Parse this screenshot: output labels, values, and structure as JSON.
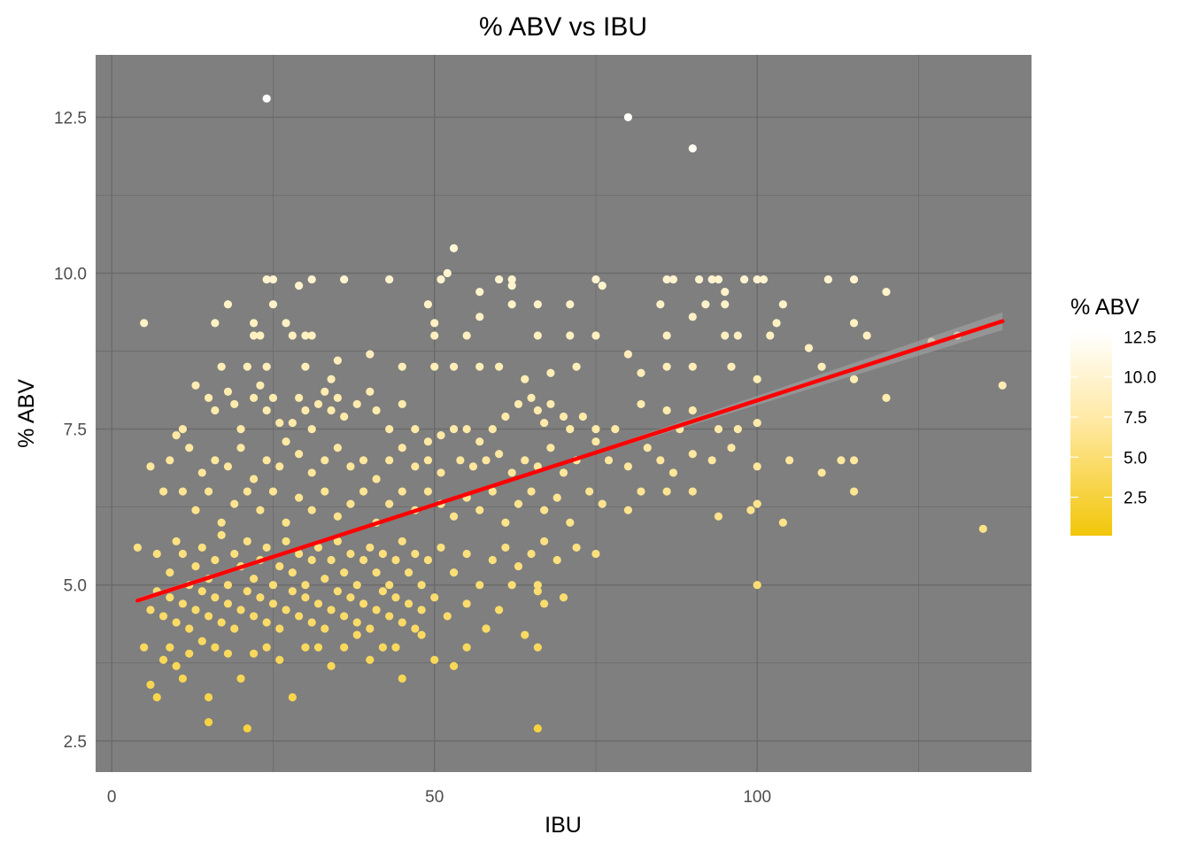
{
  "chart_data": {
    "type": "scatter",
    "title": "% ABV vs IBU",
    "xlabel": "IBU",
    "ylabel": "% ABV",
    "xlim": [
      -2.5,
      142.5
    ],
    "ylim": [
      2.0,
      13.5
    ],
    "x_ticks": [
      0,
      50,
      100
    ],
    "y_ticks": [
      2.5,
      5.0,
      7.5,
      10.0,
      12.5
    ],
    "x_tick_labels": [
      "0",
      "50",
      "100"
    ],
    "y_tick_labels": [
      "2.5",
      "5.0",
      "7.5",
      "10.0",
      "12.5"
    ],
    "grid": true,
    "panel_background": "#7f7f7f",
    "grid_color": "#6a6a6a",
    "color_scale": {
      "title": "% ABV",
      "low_color": "#f2c609",
      "mid_color": "#ffe8a0",
      "high_color": "#ffffff",
      "limits": [
        0.1,
        12.8
      ],
      "breaks": [
        2.5,
        5.0,
        7.5,
        10.0,
        12.5
      ],
      "break_labels": [
        "2.5",
        "5.0",
        "7.5",
        "10.0",
        "12.5"
      ],
      "legend_position": "right"
    },
    "trend_line": {
      "color": "#ff0000",
      "ribbon_color": "#a8a8a8",
      "x": [
        4,
        138
      ],
      "y": [
        4.75,
        9.23
      ]
    },
    "points": [
      [
        24,
        12.8
      ],
      [
        80,
        12.5
      ],
      [
        90,
        12.0
      ],
      [
        53,
        10.4
      ],
      [
        52,
        10.0
      ],
      [
        51,
        9.9
      ],
      [
        24,
        9.9
      ],
      [
        25,
        9.9
      ],
      [
        31,
        9.9
      ],
      [
        36,
        9.9
      ],
      [
        43,
        9.9
      ],
      [
        60,
        9.9
      ],
      [
        62,
        9.9
      ],
      [
        75,
        9.9
      ],
      [
        86,
        9.9
      ],
      [
        87,
        9.9
      ],
      [
        91,
        9.9
      ],
      [
        93,
        9.9
      ],
      [
        94,
        9.9
      ],
      [
        98,
        9.9
      ],
      [
        100,
        9.9
      ],
      [
        101,
        9.9
      ],
      [
        111,
        9.9
      ],
      [
        115,
        9.9
      ],
      [
        29,
        9.8
      ],
      [
        62,
        9.8
      ],
      [
        76,
        9.8
      ],
      [
        95,
        9.7
      ],
      [
        57,
        9.7
      ],
      [
        120,
        9.7
      ],
      [
        5,
        9.2
      ],
      [
        16,
        9.2
      ],
      [
        18,
        9.5
      ],
      [
        22,
        9.2
      ],
      [
        25,
        9.5
      ],
      [
        27,
        9.2
      ],
      [
        49,
        9.5
      ],
      [
        50,
        9.2
      ],
      [
        57,
        9.3
      ],
      [
        62,
        9.5
      ],
      [
        66,
        9.5
      ],
      [
        71,
        9.5
      ],
      [
        85,
        9.5
      ],
      [
        90,
        9.3
      ],
      [
        92,
        9.5
      ],
      [
        95,
        9.5
      ],
      [
        104,
        9.5
      ],
      [
        103,
        9.2
      ],
      [
        115,
        9.2
      ],
      [
        117,
        9.0
      ],
      [
        127,
        8.9
      ],
      [
        131,
        9.0
      ],
      [
        22,
        9.0
      ],
      [
        23,
        9.0
      ],
      [
        28,
        9.0
      ],
      [
        30,
        9.0
      ],
      [
        31,
        9.0
      ],
      [
        50,
        9.0
      ],
      [
        55,
        9.0
      ],
      [
        66,
        9.0
      ],
      [
        71,
        9.0
      ],
      [
        75,
        9.0
      ],
      [
        86,
        9.0
      ],
      [
        95,
        9.0
      ],
      [
        97,
        9.0
      ],
      [
        102,
        9.0
      ],
      [
        17,
        8.5
      ],
      [
        21,
        8.5
      ],
      [
        24,
        8.5
      ],
      [
        30,
        8.5
      ],
      [
        34,
        8.3
      ],
      [
        35,
        8.6
      ],
      [
        40,
        8.7
      ],
      [
        45,
        8.5
      ],
      [
        50,
        8.5
      ],
      [
        53,
        8.5
      ],
      [
        57,
        8.5
      ],
      [
        60,
        8.5
      ],
      [
        64,
        8.3
      ],
      [
        68,
        8.4
      ],
      [
        72,
        8.5
      ],
      [
        80,
        8.7
      ],
      [
        82,
        8.4
      ],
      [
        86,
        8.5
      ],
      [
        90,
        8.5
      ],
      [
        96,
        8.5
      ],
      [
        100,
        8.3
      ],
      [
        108,
        8.8
      ],
      [
        110,
        8.5
      ],
      [
        115,
        8.3
      ],
      [
        120,
        8.0
      ],
      [
        138,
        8.2
      ],
      [
        10,
        7.4
      ],
      [
        11,
        7.5
      ],
      [
        13,
        8.2
      ],
      [
        15,
        8.0
      ],
      [
        16,
        7.8
      ],
      [
        18,
        8.1
      ],
      [
        19,
        7.9
      ],
      [
        20,
        7.5
      ],
      [
        22,
        8.0
      ],
      [
        23,
        8.2
      ],
      [
        24,
        7.8
      ],
      [
        25,
        8.0
      ],
      [
        26,
        7.6
      ],
      [
        28,
        7.6
      ],
      [
        29,
        8.0
      ],
      [
        30,
        7.8
      ],
      [
        31,
        7.5
      ],
      [
        32,
        7.9
      ],
      [
        33,
        8.1
      ],
      [
        34,
        7.8
      ],
      [
        35,
        8.0
      ],
      [
        36,
        7.7
      ],
      [
        38,
        7.9
      ],
      [
        40,
        8.1
      ],
      [
        41,
        7.8
      ],
      [
        43,
        7.5
      ],
      [
        45,
        7.9
      ],
      [
        47,
        7.5
      ],
      [
        49,
        7.3
      ],
      [
        51,
        7.4
      ],
      [
        53,
        7.5
      ],
      [
        55,
        7.5
      ],
      [
        57,
        7.3
      ],
      [
        59,
        7.5
      ],
      [
        61,
        7.7
      ],
      [
        63,
        7.9
      ],
      [
        65,
        8.0
      ],
      [
        66,
        7.8
      ],
      [
        67,
        7.6
      ],
      [
        68,
        7.9
      ],
      [
        70,
        7.7
      ],
      [
        71,
        7.5
      ],
      [
        73,
        7.7
      ],
      [
        75,
        7.5
      ],
      [
        78,
        7.5
      ],
      [
        82,
        7.9
      ],
      [
        86,
        7.8
      ],
      [
        88,
        7.5
      ],
      [
        90,
        7.8
      ],
      [
        94,
        7.5
      ],
      [
        97,
        7.5
      ],
      [
        100,
        7.6
      ],
      [
        6,
        6.9
      ],
      [
        9,
        7.0
      ],
      [
        12,
        7.2
      ],
      [
        14,
        6.8
      ],
      [
        16,
        7.0
      ],
      [
        18,
        6.9
      ],
      [
        20,
        7.2
      ],
      [
        22,
        6.7
      ],
      [
        24,
        7.0
      ],
      [
        26,
        6.9
      ],
      [
        27,
        7.3
      ],
      [
        29,
        7.1
      ],
      [
        31,
        6.8
      ],
      [
        33,
        7.0
      ],
      [
        35,
        7.2
      ],
      [
        37,
        6.9
      ],
      [
        39,
        7.0
      ],
      [
        41,
        6.7
      ],
      [
        43,
        7.0
      ],
      [
        45,
        7.2
      ],
      [
        47,
        6.9
      ],
      [
        49,
        7.0
      ],
      [
        51,
        6.8
      ],
      [
        54,
        7.0
      ],
      [
        56,
        6.9
      ],
      [
        58,
        7.0
      ],
      [
        60,
        7.1
      ],
      [
        62,
        6.8
      ],
      [
        64,
        7.0
      ],
      [
        66,
        6.9
      ],
      [
        68,
        7.2
      ],
      [
        70,
        6.8
      ],
      [
        72,
        7.0
      ],
      [
        75,
        7.3
      ],
      [
        77,
        7.0
      ],
      [
        80,
        6.9
      ],
      [
        83,
        7.2
      ],
      [
        85,
        7.0
      ],
      [
        87,
        6.8
      ],
      [
        90,
        7.1
      ],
      [
        93,
        7.0
      ],
      [
        96,
        7.2
      ],
      [
        100,
        6.9
      ],
      [
        105,
        7.0
      ],
      [
        110,
        6.8
      ],
      [
        113,
        7.0
      ],
      [
        115,
        7.0
      ],
      [
        8,
        6.5
      ],
      [
        11,
        6.5
      ],
      [
        13,
        6.2
      ],
      [
        15,
        6.5
      ],
      [
        17,
        6.0
      ],
      [
        19,
        6.3
      ],
      [
        21,
        6.5
      ],
      [
        23,
        6.2
      ],
      [
        25,
        6.5
      ],
      [
        27,
        6.0
      ],
      [
        29,
        6.4
      ],
      [
        31,
        6.2
      ],
      [
        33,
        6.5
      ],
      [
        35,
        6.1
      ],
      [
        37,
        6.3
      ],
      [
        39,
        6.5
      ],
      [
        41,
        6.0
      ],
      [
        43,
        6.3
      ],
      [
        45,
        6.5
      ],
      [
        47,
        6.2
      ],
      [
        49,
        6.5
      ],
      [
        51,
        6.3
      ],
      [
        53,
        6.1
      ],
      [
        55,
        6.4
      ],
      [
        57,
        6.2
      ],
      [
        59,
        6.5
      ],
      [
        61,
        6.0
      ],
      [
        63,
        6.3
      ],
      [
        65,
        6.5
      ],
      [
        67,
        6.2
      ],
      [
        69,
        6.4
      ],
      [
        71,
        6.0
      ],
      [
        74,
        6.5
      ],
      [
        76,
        6.3
      ],
      [
        80,
        6.2
      ],
      [
        82,
        6.5
      ],
      [
        86,
        6.5
      ],
      [
        90,
        6.5
      ],
      [
        94,
        6.1
      ],
      [
        99,
        6.2
      ],
      [
        100,
        6.3
      ],
      [
        104,
        6.0
      ],
      [
        115,
        6.5
      ],
      [
        4,
        5.6
      ],
      [
        7,
        5.5
      ],
      [
        9,
        5.2
      ],
      [
        10,
        5.7
      ],
      [
        11,
        5.5
      ],
      [
        12,
        5.0
      ],
      [
        13,
        5.3
      ],
      [
        14,
        5.6
      ],
      [
        15,
        5.1
      ],
      [
        16,
        5.4
      ],
      [
        17,
        5.8
      ],
      [
        18,
        5.0
      ],
      [
        19,
        5.5
      ],
      [
        20,
        5.3
      ],
      [
        21,
        5.7
      ],
      [
        22,
        5.1
      ],
      [
        23,
        5.4
      ],
      [
        24,
        5.6
      ],
      [
        25,
        5.0
      ],
      [
        26,
        5.3
      ],
      [
        27,
        5.7
      ],
      [
        28,
        5.2
      ],
      [
        29,
        5.5
      ],
      [
        30,
        5.0
      ],
      [
        31,
        5.4
      ],
      [
        32,
        5.6
      ],
      [
        33,
        5.1
      ],
      [
        34,
        5.4
      ],
      [
        35,
        5.7
      ],
      [
        36,
        5.2
      ],
      [
        37,
        5.5
      ],
      [
        38,
        5.0
      ],
      [
        39,
        5.4
      ],
      [
        40,
        5.6
      ],
      [
        41,
        5.2
      ],
      [
        42,
        5.5
      ],
      [
        43,
        5.0
      ],
      [
        44,
        5.4
      ],
      [
        45,
        5.7
      ],
      [
        46,
        5.2
      ],
      [
        47,
        5.5
      ],
      [
        48,
        5.0
      ],
      [
        49,
        5.4
      ],
      [
        51,
        5.6
      ],
      [
        53,
        5.2
      ],
      [
        55,
        5.5
      ],
      [
        57,
        5.0
      ],
      [
        59,
        5.4
      ],
      [
        61,
        5.6
      ],
      [
        63,
        5.3
      ],
      [
        65,
        5.5
      ],
      [
        66,
        5.0
      ],
      [
        67,
        5.7
      ],
      [
        69,
        5.4
      ],
      [
        72,
        5.6
      ],
      [
        75,
        5.5
      ],
      [
        135,
        5.9
      ],
      [
        6,
        4.6
      ],
      [
        7,
        4.9
      ],
      [
        8,
        4.5
      ],
      [
        9,
        4.8
      ],
      [
        10,
        4.4
      ],
      [
        11,
        4.7
      ],
      [
        12,
        4.3
      ],
      [
        13,
        4.6
      ],
      [
        14,
        4.9
      ],
      [
        15,
        4.5
      ],
      [
        16,
        4.8
      ],
      [
        17,
        4.4
      ],
      [
        18,
        4.7
      ],
      [
        19,
        4.3
      ],
      [
        20,
        4.6
      ],
      [
        21,
        4.9
      ],
      [
        22,
        4.5
      ],
      [
        23,
        4.8
      ],
      [
        24,
        4.4
      ],
      [
        25,
        4.7
      ],
      [
        26,
        4.3
      ],
      [
        27,
        4.6
      ],
      [
        28,
        4.9
      ],
      [
        29,
        4.5
      ],
      [
        30,
        4.8
      ],
      [
        31,
        4.4
      ],
      [
        32,
        4.7
      ],
      [
        33,
        4.3
      ],
      [
        34,
        4.6
      ],
      [
        35,
        4.9
      ],
      [
        36,
        4.5
      ],
      [
        37,
        4.8
      ],
      [
        38,
        4.4
      ],
      [
        39,
        4.7
      ],
      [
        40,
        4.3
      ],
      [
        41,
        4.6
      ],
      [
        42,
        4.9
      ],
      [
        43,
        4.5
      ],
      [
        44,
        4.8
      ],
      [
        45,
        4.4
      ],
      [
        46,
        4.7
      ],
      [
        47,
        4.3
      ],
      [
        48,
        4.6
      ],
      [
        50,
        4.8
      ],
      [
        52,
        4.5
      ],
      [
        55,
        4.7
      ],
      [
        58,
        4.3
      ],
      [
        60,
        4.6
      ],
      [
        62,
        5.0
      ],
      [
        66,
        4.9
      ],
      [
        67,
        4.7
      ],
      [
        70,
        4.8
      ],
      [
        100,
        5.0
      ],
      [
        5,
        4.0
      ],
      [
        6,
        3.4
      ],
      [
        7,
        3.2
      ],
      [
        8,
        3.8
      ],
      [
        9,
        4.0
      ],
      [
        10,
        3.7
      ],
      [
        11,
        3.5
      ],
      [
        12,
        3.9
      ],
      [
        14,
        4.1
      ],
      [
        15,
        3.2
      ],
      [
        16,
        4.0
      ],
      [
        18,
        3.9
      ],
      [
        20,
        3.5
      ],
      [
        22,
        3.9
      ],
      [
        24,
        4.0
      ],
      [
        26,
        3.8
      ],
      [
        28,
        3.2
      ],
      [
        30,
        4.0
      ],
      [
        32,
        4.0
      ],
      [
        34,
        3.7
      ],
      [
        36,
        4.0
      ],
      [
        38,
        4.2
      ],
      [
        40,
        3.8
      ],
      [
        42,
        4.0
      ],
      [
        44,
        4.0
      ],
      [
        45,
        3.5
      ],
      [
        48,
        4.2
      ],
      [
        50,
        3.8
      ],
      [
        53,
        3.7
      ],
      [
        55,
        4.0
      ],
      [
        58,
        4.3
      ],
      [
        64,
        4.2
      ],
      [
        66,
        4.0
      ],
      [
        15,
        2.8
      ],
      [
        21,
        2.7
      ],
      [
        66,
        2.7
      ]
    ]
  }
}
